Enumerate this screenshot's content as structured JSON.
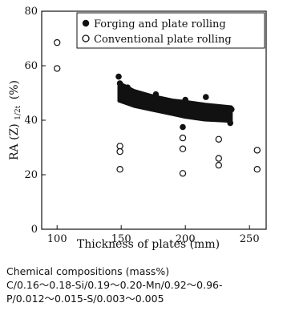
{
  "chart_data": {
    "type": "scatter",
    "xlabel": "Thickness of plates (mm)",
    "ylabel": "RA (Z)",
    "ylabel_sub": "1/2t",
    "ylabel_unit": "(%)",
    "xlim": [
      88,
      263
    ],
    "ylim": [
      0,
      80
    ],
    "xticks": [
      100,
      150,
      200,
      250
    ],
    "yticks": [
      0,
      20,
      40,
      60,
      80
    ],
    "grid": false,
    "legend_position": "top-right",
    "series": [
      {
        "name": "Forging and plate rolling",
        "marker": "filled-circle",
        "band": {
          "x": [
            148,
            160,
            175,
            190,
            200,
            215,
            236
          ],
          "upper": [
            54,
            51,
            49,
            47.5,
            47,
            46,
            45
          ],
          "lower": [
            47,
            45,
            43.5,
            42,
            41,
            40,
            39.5
          ]
        },
        "points": [
          {
            "x": 148,
            "y": 56
          },
          {
            "x": 149,
            "y": 53.5
          },
          {
            "x": 150,
            "y": 52
          },
          {
            "x": 150,
            "y": 47.5
          },
          {
            "x": 155,
            "y": 52
          },
          {
            "x": 160,
            "y": 49
          },
          {
            "x": 177,
            "y": 49.5
          },
          {
            "x": 198,
            "y": 37.5
          },
          {
            "x": 200,
            "y": 47.5
          },
          {
            "x": 216,
            "y": 48.5
          },
          {
            "x": 235,
            "y": 39
          },
          {
            "x": 236,
            "y": 44
          }
        ]
      },
      {
        "name": "Conventional plate rolling",
        "marker": "open-circle",
        "points": [
          {
            "x": 100,
            "y": 68.5
          },
          {
            "x": 100,
            "y": 59
          },
          {
            "x": 149,
            "y": 30.5
          },
          {
            "x": 149,
            "y": 28.5
          },
          {
            "x": 149,
            "y": 22
          },
          {
            "x": 198,
            "y": 33.5
          },
          {
            "x": 198,
            "y": 29.5
          },
          {
            "x": 198,
            "y": 20.5
          },
          {
            "x": 226,
            "y": 33
          },
          {
            "x": 226,
            "y": 26
          },
          {
            "x": 226,
            "y": 23.5
          },
          {
            "x": 256,
            "y": 29
          },
          {
            "x": 256,
            "y": 22
          }
        ]
      }
    ]
  },
  "caption": {
    "line1": "Chemical compositions (mass%)",
    "line2": "C/0.16～0.18-Si/0.19～0.20-Mn/0.92～0.96-",
    "line3": "P/0.012～0.015-S/0.003～0.005"
  }
}
